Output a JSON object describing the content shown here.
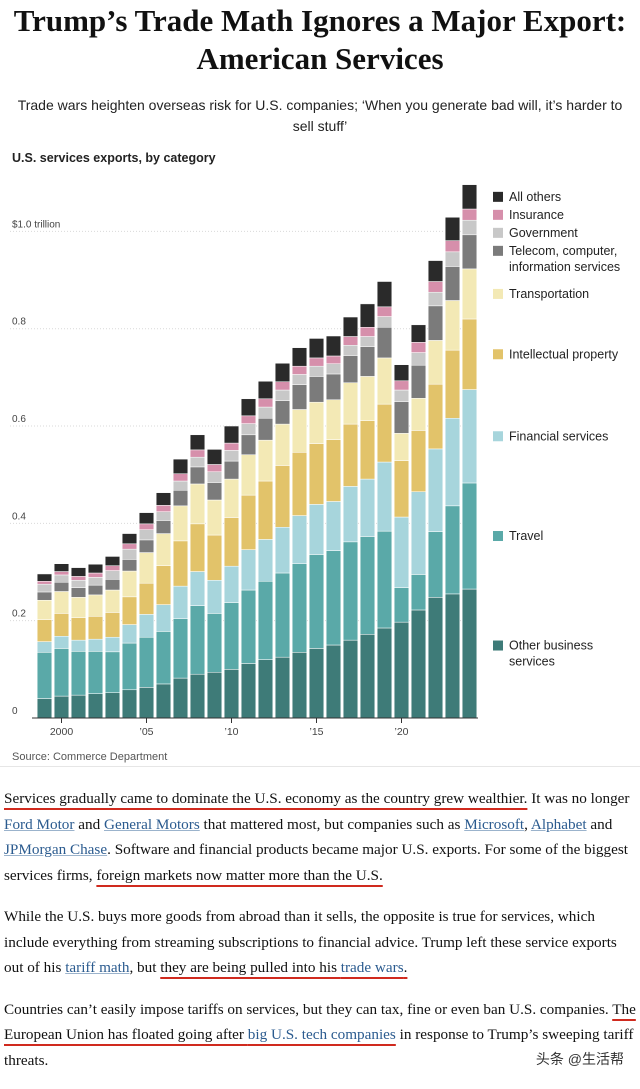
{
  "headline": "Trump’s Trade Math Ignores a Major Export: American Services",
  "dek": "Trade wars heighten overseas risk for U.S. companies; ‘When you generate bad will, it’s harder to sell stuff’",
  "source": "Source: Commerce Department",
  "watermark": "头条 @生活帮",
  "article": {
    "p1": {
      "s1": "Services gradually came to dominate the U.S. economy as the country grew wealthier.",
      "t1": " It was no longer ",
      "link_ford": "Ford Motor",
      "t2": " and ",
      "link_gm": "General Motors",
      "t3": " that mattered most, but companies such as ",
      "link_msft": "Microsoft",
      "t4": ", ",
      "link_alphabet": "Alphabet",
      "t5": " and ",
      "link_jpm": "JPMorgan Chase",
      "t6": ". Software and financial products became major U.S. exports. For some of the biggest services firms, ",
      "s2": "foreign markets now matter more than the U.S."
    },
    "p2": {
      "t1": "While the U.S. buys more goods from abroad than it sells, the opposite is true for services, which include everything from streaming subscriptions to financial advice. Trump left these service exports out of his ",
      "link_tariff": "tariff math",
      "t2": ", but ",
      "s1": "they are being pulled into his ",
      "link_wars": "trade wars",
      "t3": "."
    },
    "p3": {
      "t1": "Countries can’t easily impose tariffs on services, but they can tax, fine or even ban U.S. companies. ",
      "s1": "The European Union has floated going after ",
      "link_tech": "big U.S. tech companies",
      "t2": " in response to Trump’s sweeping tariff threats."
    }
  },
  "chart_data": {
    "type": "bar",
    "stacked": true,
    "title": "U.S. services exports, by category",
    "y_unit": "$ trillion",
    "ylim": [
      0,
      1.12
    ],
    "y_ticks": [
      {
        "value": 0,
        "label": "0"
      },
      {
        "value": 0.2,
        "label": "0.2"
      },
      {
        "value": 0.4,
        "label": "0.4"
      },
      {
        "value": 0.6,
        "label": "0.6"
      },
      {
        "value": 0.8,
        "label": "0.8"
      },
      {
        "value": 1.0,
        "label": "$1.0 trillion"
      }
    ],
    "x_ticks": [
      {
        "year": 2000,
        "label": "2000"
      },
      {
        "year": 2005,
        "label": "’05"
      },
      {
        "year": 2010,
        "label": "’10"
      },
      {
        "year": 2015,
        "label": "’15"
      },
      {
        "year": 2020,
        "label": "’20"
      }
    ],
    "legend_position": "right",
    "categories": [
      1999,
      2000,
      2001,
      2002,
      2003,
      2004,
      2005,
      2006,
      2007,
      2008,
      2009,
      2010,
      2011,
      2012,
      2013,
      2014,
      2015,
      2016,
      2017,
      2018,
      2019,
      2020,
      2021,
      2022,
      2023,
      2024
    ],
    "series": [
      {
        "name": "Other business services",
        "color": "#3e7b78",
        "values": [
          0.04,
          0.045,
          0.047,
          0.05,
          0.052,
          0.058,
          0.063,
          0.07,
          0.082,
          0.09,
          0.094,
          0.1,
          0.112,
          0.12,
          0.125,
          0.135,
          0.143,
          0.15,
          0.16,
          0.172,
          0.185,
          0.197,
          0.222,
          0.248,
          0.255,
          0.265
        ]
      },
      {
        "name": "Travel",
        "color": "#5aa9a8",
        "values": [
          0.095,
          0.098,
          0.09,
          0.087,
          0.084,
          0.096,
          0.103,
          0.108,
          0.122,
          0.141,
          0.121,
          0.137,
          0.151,
          0.161,
          0.173,
          0.182,
          0.193,
          0.194,
          0.202,
          0.201,
          0.199,
          0.071,
          0.073,
          0.135,
          0.181,
          0.218
        ]
      },
      {
        "name": "Financial services",
        "color": "#a7d5dc",
        "values": [
          0.022,
          0.025,
          0.023,
          0.025,
          0.03,
          0.038,
          0.047,
          0.055,
          0.067,
          0.07,
          0.068,
          0.075,
          0.083,
          0.086,
          0.094,
          0.099,
          0.103,
          0.101,
          0.114,
          0.118,
          0.142,
          0.145,
          0.17,
          0.17,
          0.18,
          0.192
        ]
      },
      {
        "name": "Intellectual property",
        "color": "#e2c36a",
        "values": [
          0.045,
          0.047,
          0.046,
          0.047,
          0.051,
          0.057,
          0.064,
          0.08,
          0.093,
          0.098,
          0.093,
          0.1,
          0.112,
          0.12,
          0.127,
          0.13,
          0.125,
          0.127,
          0.128,
          0.12,
          0.119,
          0.116,
          0.126,
          0.133,
          0.14,
          0.145
        ]
      },
      {
        "name": "Transportation",
        "color": "#f3e9b5",
        "values": [
          0.04,
          0.045,
          0.042,
          0.044,
          0.046,
          0.053,
          0.063,
          0.066,
          0.072,
          0.082,
          0.072,
          0.079,
          0.083,
          0.084,
          0.085,
          0.088,
          0.085,
          0.082,
          0.085,
          0.091,
          0.095,
          0.056,
          0.066,
          0.09,
          0.102,
          0.103
        ]
      },
      {
        "name": "Telecom, computer, information services",
        "color": "#7b7b7b",
        "values": [
          0.017,
          0.019,
          0.02,
          0.02,
          0.022,
          0.024,
          0.026,
          0.027,
          0.032,
          0.035,
          0.036,
          0.037,
          0.041,
          0.045,
          0.048,
          0.051,
          0.053,
          0.053,
          0.056,
          0.061,
          0.063,
          0.065,
          0.068,
          0.071,
          0.07,
          0.07
        ]
      },
      {
        "name": "Government",
        "color": "#c8c8c8",
        "values": [
          0.016,
          0.015,
          0.015,
          0.016,
          0.018,
          0.021,
          0.021,
          0.018,
          0.019,
          0.02,
          0.022,
          0.022,
          0.023,
          0.023,
          0.022,
          0.021,
          0.021,
          0.021,
          0.021,
          0.021,
          0.022,
          0.024,
          0.026,
          0.028,
          0.03,
          0.03
        ]
      },
      {
        "name": "Insurance",
        "color": "#d68fab",
        "values": [
          0.006,
          0.007,
          0.008,
          0.009,
          0.01,
          0.011,
          0.012,
          0.013,
          0.015,
          0.015,
          0.015,
          0.015,
          0.016,
          0.017,
          0.017,
          0.017,
          0.017,
          0.016,
          0.018,
          0.019,
          0.02,
          0.019,
          0.021,
          0.022,
          0.023,
          0.023
        ]
      },
      {
        "name": "All others",
        "color": "#2a2a2a",
        "values": [
          0.015,
          0.016,
          0.018,
          0.018,
          0.019,
          0.021,
          0.023,
          0.026,
          0.03,
          0.031,
          0.031,
          0.035,
          0.035,
          0.036,
          0.038,
          0.038,
          0.04,
          0.041,
          0.04,
          0.048,
          0.052,
          0.033,
          0.036,
          0.043,
          0.048,
          0.05
        ]
      }
    ]
  }
}
